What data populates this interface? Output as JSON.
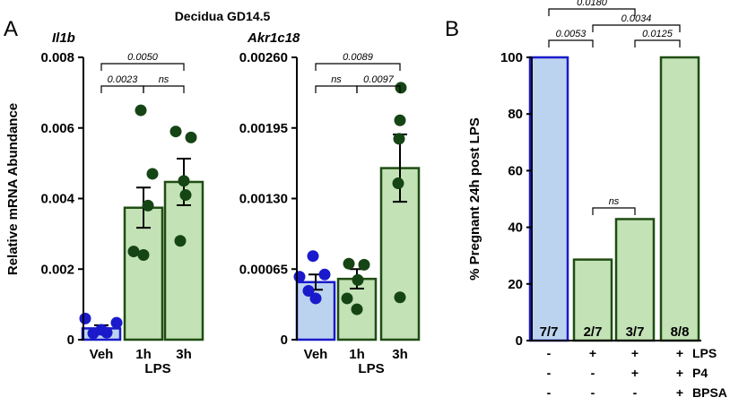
{
  "super_title": "Decidua GD14.5",
  "panel_a_letter": "A",
  "panel_b_letter": "B",
  "ylabel_a": "Relative mRNA Abundance",
  "group_label": "LPS",
  "colors": {
    "veh_fill": "#bcd3f0",
    "veh_stroke": "#1a1ac8",
    "veh_point": "#1a1acc",
    "lps_fill": "#c3e2b6",
    "lps_stroke": "#1f4d12",
    "lps_point": "#154515"
  },
  "chart_data": [
    {
      "id": "il1b",
      "type": "bar",
      "title": "Il1b",
      "ylabel": "Relative mRNA Abundance",
      "categories": [
        "Veh",
        "1h",
        "3h"
      ],
      "means": [
        0.00032,
        0.00374,
        0.00447
      ],
      "sem": [
        9e-05,
        0.00057,
        0.00066
      ],
      "points": [
        [
          0.00018,
          0.0006,
          0.00048,
          0.0002,
          0.00028
        ],
        [
          0.0065,
          0.0047,
          0.0038,
          0.0025,
          0.0024
        ],
        [
          0.0059,
          0.00573,
          0.0045,
          0.0041,
          0.0028
        ]
      ],
      "ylim": [
        0,
        0.008
      ],
      "yticks": [
        0,
        0.002,
        0.004,
        0.006,
        0.008
      ],
      "ytick_labels": [
        "0",
        "0.002",
        "0.004",
        "0.006",
        "0.008"
      ],
      "xlabel": "LPS",
      "significance": [
        {
          "from": 0,
          "to": 1,
          "label": "0.0023",
          "level": 1
        },
        {
          "from": 1,
          "to": 2,
          "label": "ns",
          "level": 1
        },
        {
          "from": 0,
          "to": 2,
          "label": "0.0050",
          "level": 2
        }
      ]
    },
    {
      "id": "akr1c18",
      "type": "bar",
      "title": "Akr1c18",
      "categories": [
        "Veh",
        "1h",
        "3h"
      ],
      "means": [
        0.00053,
        0.00056,
        0.00158
      ],
      "sem": [
        7e-05,
        9e-05,
        0.00031
      ],
      "points": [
        [
          0.00077,
          0.0006,
          0.00058,
          0.00045,
          0.00038
        ],
        [
          0.0007,
          0.00069,
          0.00055,
          0.00038,
          0.00028
        ],
        [
          0.00232,
          0.00202,
          0.00185,
          0.00144,
          0.00039
        ]
      ],
      "ylim": [
        0,
        0.0026
      ],
      "yticks": [
        0,
        0.00065,
        0.0013,
        0.00195,
        0.0026
      ],
      "ytick_labels": [
        "0",
        "0.00065",
        "0.00130",
        "0.00195",
        "0.00260"
      ],
      "xlabel": "LPS",
      "significance": [
        {
          "from": 0,
          "to": 1,
          "label": "ns",
          "level": 1
        },
        {
          "from": 1,
          "to": 2,
          "label": "0.0097",
          "level": 1
        },
        {
          "from": 0,
          "to": 2,
          "label": "0.0089",
          "level": 2
        }
      ]
    },
    {
      "id": "pregnant",
      "type": "bar",
      "ylabel": "% Pregnant 24h post LPS",
      "values": [
        100,
        28.6,
        42.9,
        100
      ],
      "count_labels": [
        "7/7",
        "2/7",
        "3/7",
        "8/8"
      ],
      "ylim": [
        0,
        100
      ],
      "yticks": [
        0,
        20,
        40,
        60,
        80,
        100
      ],
      "ytick_labels": [
        "0",
        "20",
        "40",
        "60",
        "80",
        "100"
      ],
      "treatments": [
        {
          "name": "LPS",
          "marks": [
            "-",
            "+",
            "+",
            "+"
          ]
        },
        {
          "name": "P4",
          "marks": [
            "-",
            "-",
            "+",
            "+"
          ]
        },
        {
          "name": "BPSA",
          "marks": [
            "-",
            "-",
            "-",
            "+"
          ]
        }
      ],
      "significance": [
        {
          "from": 0,
          "to": 1,
          "label": "0.0053",
          "level": 2
        },
        {
          "from": 2,
          "to": 3,
          "label": "0.0125",
          "level": 2
        },
        {
          "from": 1,
          "to": 2,
          "label": "ns",
          "level": 0
        },
        {
          "from": 1,
          "to": 3,
          "label": "0.0034",
          "level": 3
        },
        {
          "from": 0,
          "to": 2,
          "label": "0.0180",
          "level": 4
        }
      ]
    }
  ]
}
